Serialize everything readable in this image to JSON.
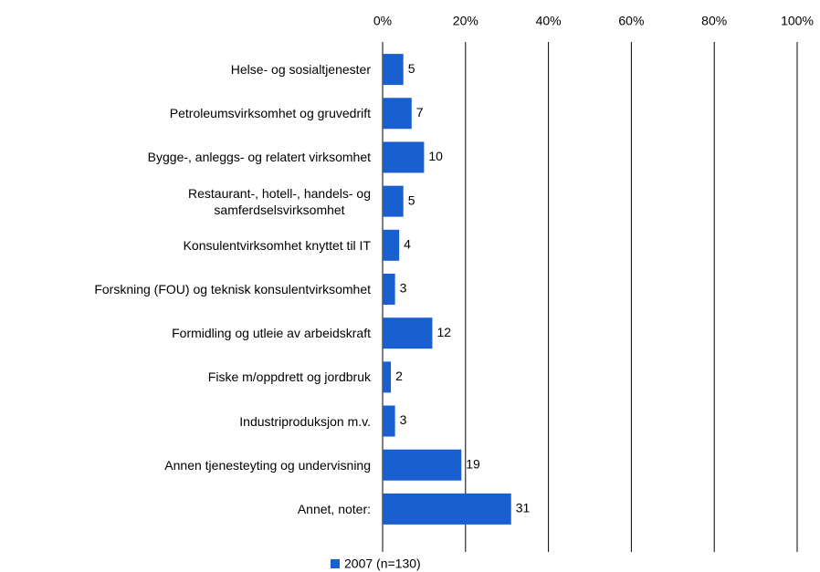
{
  "chart_data": {
    "type": "bar",
    "orientation": "horizontal",
    "categories": [
      "Helse- og sosialtjenester",
      "Petroleumsvirksomhet og gruvedrift",
      "Bygge-, anleggs- og relatert virksomhet",
      "Restaurant-, hotell-, handels- og\nsamferdselsvirksomhet",
      "Konsulentvirksomhet knyttet til IT",
      "Forskning (FOU) og teknisk konsulentvirksomhet",
      "Formidling og utleie av arbeidskraft",
      "Fiske m/oppdrett og jordbruk",
      "Industriproduksjon m.v.",
      "Annen tjenesteyting og undervisning",
      "Annet, noter:"
    ],
    "series": [
      {
        "name": "2007 (n=130)",
        "color": "#1a5fd0",
        "values": [
          5,
          7,
          10,
          5,
          4,
          3,
          12,
          2,
          3,
          19,
          31
        ]
      }
    ],
    "xlim": [
      0,
      100
    ],
    "xticks": [
      {
        "value": 0,
        "label": "0%"
      },
      {
        "value": 20,
        "label": "20%"
      },
      {
        "value": 40,
        "label": "40%"
      },
      {
        "value": 60,
        "label": "60%"
      },
      {
        "value": 80,
        "label": "80%"
      },
      {
        "value": 100,
        "label": "100%"
      }
    ],
    "grid": true,
    "legend": "bottom"
  }
}
